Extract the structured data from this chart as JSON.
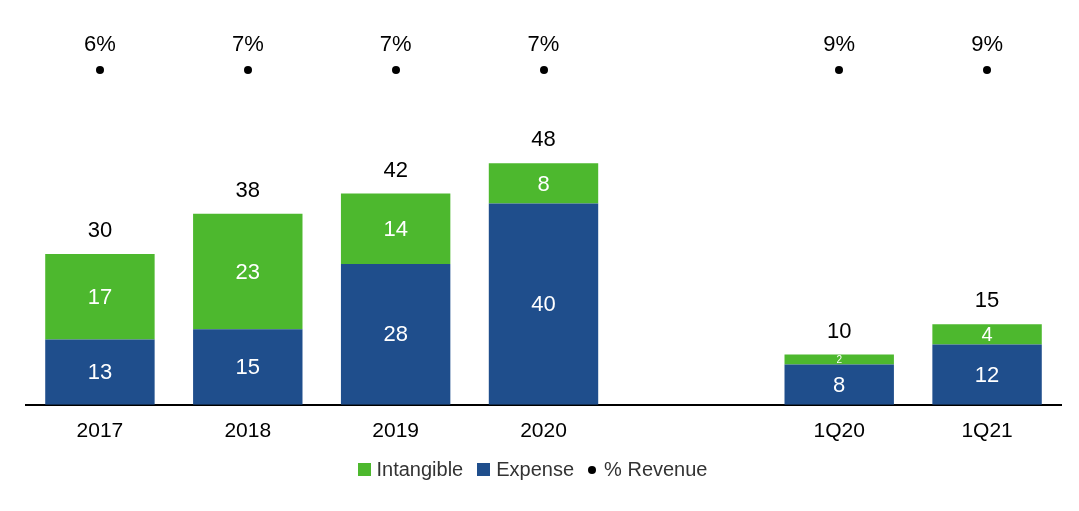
{
  "chart_data": {
    "type": "bar",
    "stacked": true,
    "categories": [
      "2017",
      "2018",
      "2019",
      "2020",
      null,
      "1Q20",
      "1Q21"
    ],
    "series": [
      {
        "name": "Expense",
        "color": "#1f4e8c",
        "values": [
          13,
          15,
          28,
          40,
          null,
          8,
          12
        ]
      },
      {
        "name": "Intangible",
        "color": "#4db82e",
        "values": [
          17,
          23,
          14,
          8,
          null,
          2,
          4
        ]
      }
    ],
    "annotations": [
      "6%",
      "7%",
      "7%",
      "7%",
      "9%",
      "9%",
      "% Revenue"
    ],
    "data_labels": true,
    "totals": [
      "30",
      "38",
      "42",
      "48",
      null,
      "10",
      "15"
    ],
    "grid": false,
    "legend": "bottom",
    "tick_labels": "x"
  }
}
